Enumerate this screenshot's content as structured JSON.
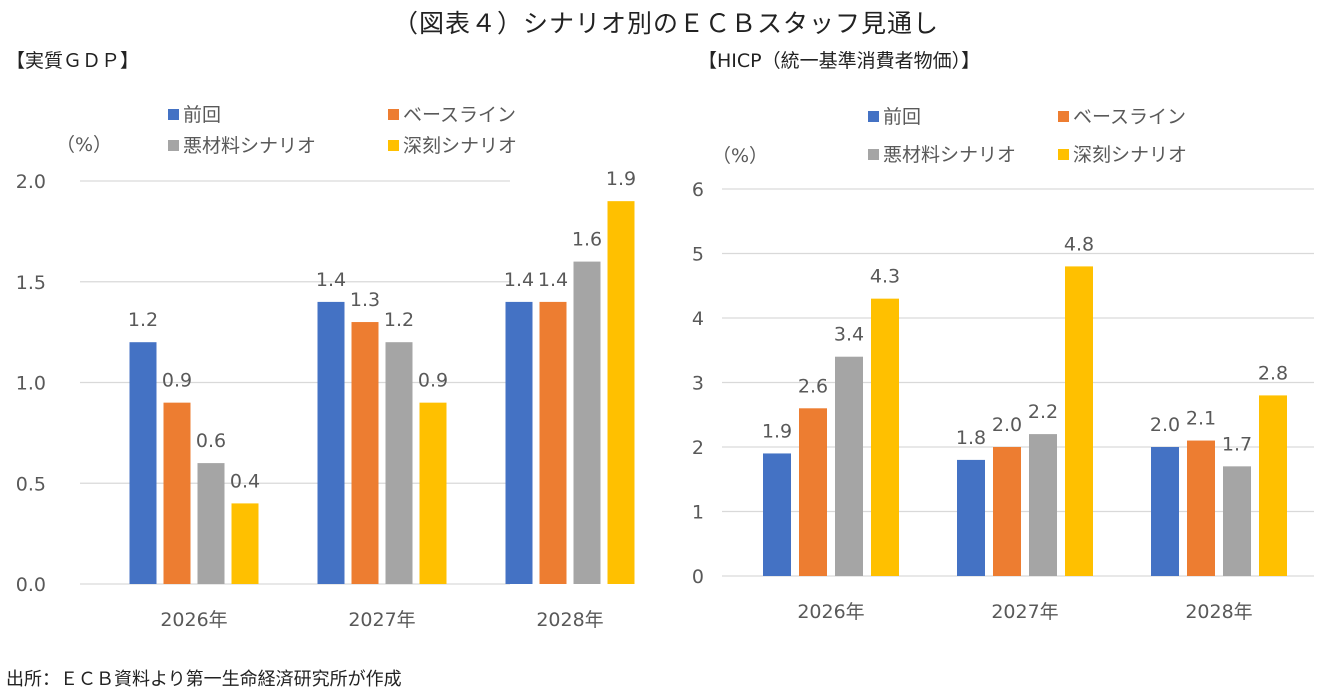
{
  "title": "（図表４）シナリオ別のＥＣＢスタッフ見通し",
  "source": "出所：ＥＣＢ資料より第一生命経済研究所が作成",
  "colors": {
    "previous": "#4472C4",
    "baseline": "#ED7D31",
    "adverse": "#A5A5A5",
    "severe": "#FFC000",
    "grid": "#D9D9D9",
    "text": "#595959"
  },
  "chart_data": [
    {
      "type": "bar",
      "title": "【実質ＧＤＰ】",
      "ylabel": "（%）",
      "xlabel": "",
      "categories": [
        "2026年",
        "2027年",
        "2028年"
      ],
      "ylim": [
        0.0,
        2.0
      ],
      "yticks": [
        "0.0",
        "0.5",
        "1.0",
        "1.5",
        "2.0"
      ],
      "ytick_values": [
        0.0,
        0.5,
        1.0,
        1.5,
        2.0
      ],
      "grid": true,
      "legend_position": "top",
      "series": [
        {
          "name": "前回",
          "key": "previous",
          "values": [
            1.2,
            1.4,
            1.4
          ],
          "labels": [
            "1.2",
            "1.4",
            "1.4"
          ]
        },
        {
          "name": "ベースライン",
          "key": "baseline",
          "values": [
            0.9,
            1.3,
            1.4
          ],
          "labels": [
            "0.9",
            "1.3",
            "1.4"
          ]
        },
        {
          "name": "悪材料シナリオ",
          "key": "adverse",
          "values": [
            0.6,
            1.2,
            1.6
          ],
          "labels": [
            "0.6",
            "1.2",
            "1.6"
          ]
        },
        {
          "name": "深刻シナリオ",
          "key": "severe",
          "values": [
            0.4,
            0.9,
            1.9
          ],
          "labels": [
            "0.4",
            "0.9",
            "1.9"
          ]
        }
      ]
    },
    {
      "type": "bar",
      "title": "【HICP（統一基準消費者物価）】",
      "ylabel": "（%）",
      "xlabel": "",
      "categories": [
        "2026年",
        "2027年",
        "2028年"
      ],
      "ylim": [
        0,
        6
      ],
      "yticks": [
        "0",
        "1",
        "2",
        "3",
        "4",
        "5",
        "6"
      ],
      "ytick_values": [
        0,
        1,
        2,
        3,
        4,
        5,
        6
      ],
      "grid": true,
      "legend_position": "top",
      "series": [
        {
          "name": "前回",
          "key": "previous",
          "values": [
            1.9,
            1.8,
            2.0
          ],
          "labels": [
            "1.9",
            "1.8",
            "2.0"
          ]
        },
        {
          "name": "ベースライン",
          "key": "baseline",
          "values": [
            2.6,
            2.0,
            2.1
          ],
          "labels": [
            "2.6",
            "2.0",
            "2.1"
          ]
        },
        {
          "name": "悪材料シナリオ",
          "key": "adverse",
          "values": [
            3.4,
            2.2,
            1.7
          ],
          "labels": [
            "3.4",
            "2.2",
            "1.7"
          ]
        },
        {
          "name": "深刻シナリオ",
          "key": "severe",
          "values": [
            4.3,
            4.8,
            2.8
          ],
          "labels": [
            "4.3",
            "4.8",
            "2.8"
          ]
        }
      ]
    }
  ]
}
